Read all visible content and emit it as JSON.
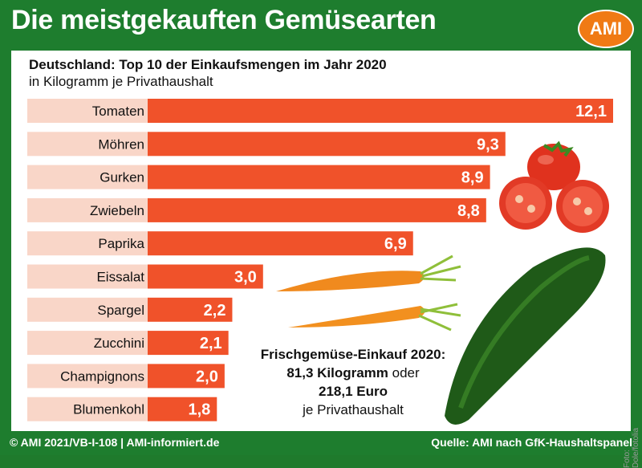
{
  "header": {
    "title": "Die meistgekauften Gemüsearten",
    "logo": "AMI"
  },
  "chart_data": {
    "type": "bar",
    "orientation": "horizontal",
    "title": "Deutschland: Top 10 der Einkaufsmengen im Jahr 2020",
    "subtitle": "in Kilogramm je Privathaushalt",
    "categories": [
      "Tomaten",
      "Möhren",
      "Gurken",
      "Zwiebeln",
      "Paprika",
      "Eissalat",
      "Spargel",
      "Zucchini",
      "Champignons",
      "Blumenkohl"
    ],
    "values": [
      12.1,
      9.3,
      8.9,
      8.8,
      6.9,
      3.0,
      2.2,
      2.1,
      2.0,
      1.8
    ],
    "value_labels": [
      "12,1",
      "9,3",
      "8,9",
      "8,8",
      "6,9",
      "3,0",
      "2,2",
      "2,1",
      "2,0",
      "1,8"
    ],
    "xlim": [
      0,
      12.1
    ],
    "grid": false,
    "bar_color": "#f0522a",
    "label_box_color": "#f9d6c8"
  },
  "note": {
    "line1": "Frischgemüse-Einkauf 2020:",
    "line2_bold": "81,3 Kilogramm",
    "line2_rest": " oder",
    "line3": "218,1 Euro",
    "line4": "je Privathaushalt"
  },
  "photo_credit": "Foto: Dole/fotolia",
  "footer": {
    "left": "© AMI 2021/VB-I-108 | AMI-informiert.de",
    "right": "Quelle: AMI nach GfK-Haushaltspanel"
  },
  "colors": {
    "frame": "#1e7d2e",
    "logo": "#f07a14"
  }
}
